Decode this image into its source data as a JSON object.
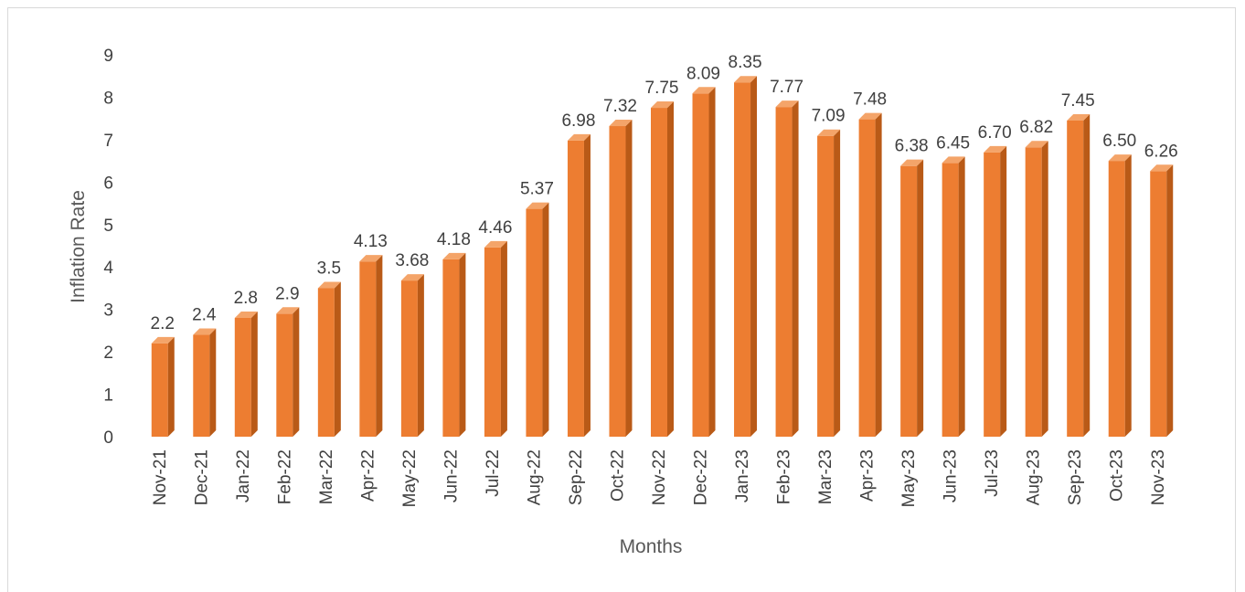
{
  "chart_data": {
    "type": "bar",
    "style": "3d-column",
    "title": "",
    "xlabel": "Months",
    "ylabel": "Inflation Rate",
    "ylim": [
      0,
      9
    ],
    "yticks": [
      0,
      1,
      2,
      3,
      4,
      5,
      6,
      7,
      8,
      9
    ],
    "grid": false,
    "legend": "none",
    "categories": [
      "Nov-21",
      "Dec-21",
      "Jan-22",
      "Feb-22",
      "Mar-22",
      "Apr-22",
      "May-22",
      "Jun-22",
      "Jul-22",
      "Aug-22",
      "Sep-22",
      "Oct-22",
      "Nov-22",
      "Dec-22",
      "Jan-23",
      "Feb-23",
      "Mar-23",
      "Apr-23",
      "May-23",
      "Jun-23",
      "Jul-23",
      "Aug-23",
      "Sep-23",
      "Oct-23",
      "Nov-23"
    ],
    "values": [
      2.2,
      2.4,
      2.8,
      2.9,
      3.5,
      4.13,
      3.68,
      4.18,
      4.46,
      5.37,
      6.98,
      7.32,
      7.75,
      8.09,
      8.35,
      7.77,
      7.09,
      7.48,
      6.38,
      6.45,
      6.7,
      6.82,
      7.45,
      6.5,
      6.26
    ],
    "data_labels": [
      "2.2",
      "2.4",
      "2.8",
      "2.9",
      "3.5",
      "4.13",
      "3.68",
      "4.18",
      "4.46",
      "5.37",
      "6.98",
      "7.32",
      "7.75",
      "8.09",
      "8.35",
      "7.77",
      "7.09",
      "7.48",
      "6.38",
      "6.45",
      "6.70",
      "6.82",
      "7.45",
      "6.50",
      "6.26"
    ],
    "colors": {
      "bar_front": "#ed7d31",
      "bar_side": "#b95a17",
      "bar_top": "#f4a469"
    }
  }
}
